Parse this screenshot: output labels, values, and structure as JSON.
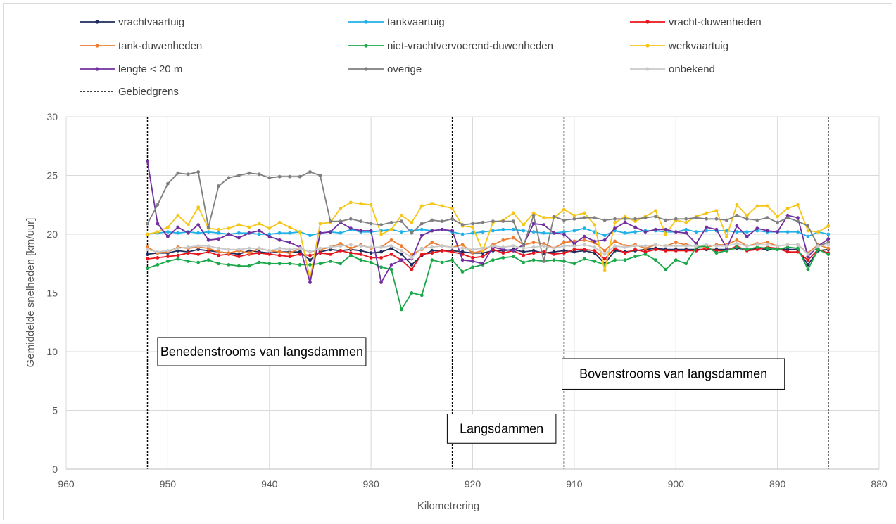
{
  "chart_data": {
    "type": "line",
    "xlabel": "Kilometrering",
    "ylabel": "Gemiddelde snelheden [km/uur]",
    "xlim": [
      960,
      880
    ],
    "ylim": [
      0,
      30
    ],
    "x_reversed": true,
    "x_ticks": [
      960,
      950,
      940,
      930,
      920,
      910,
      900,
      890,
      880
    ],
    "y_ticks": [
      0,
      5,
      10,
      15,
      20,
      25,
      30
    ],
    "grid": true,
    "legend_position": "top",
    "boundaries": {
      "name": "Gebiedgrens",
      "color": "#000000",
      "x": [
        952,
        922,
        911,
        885
      ]
    },
    "region_labels": [
      {
        "text": "Benedenstrooms van langsdammen",
        "x_from": 951,
        "x_to": 930.5,
        "y_from": 8.8,
        "y_to": 11.2
      },
      {
        "text": "Langsdammen",
        "x_from": 922.5,
        "x_to": 911.8,
        "y_from": 2.2,
        "y_to": 4.7
      },
      {
        "text": "Bovenstrooms van langsdammen",
        "x_from": 911.2,
        "x_to": 889.3,
        "y_from": 6.8,
        "y_to": 9.4
      }
    ],
    "x": [
      952,
      951,
      950,
      949,
      948,
      947,
      946,
      945,
      944,
      943,
      942,
      941,
      940,
      939,
      938,
      937,
      936,
      935,
      934,
      933,
      932,
      931,
      930,
      929,
      928,
      927,
      926,
      925,
      924,
      923,
      922,
      921,
      920,
      919,
      918,
      917,
      916,
      915,
      914,
      913,
      912,
      911,
      910,
      909,
      908,
      907,
      906,
      905,
      904,
      903,
      902,
      901,
      900,
      899,
      898,
      897,
      896,
      895,
      894,
      893,
      892,
      891,
      890,
      889,
      888,
      887,
      886,
      885
    ],
    "series": [
      {
        "name": "vrachtvaartuig",
        "color": "#1f2d5e",
        "values": [
          18.3,
          18.4,
          18.4,
          18.6,
          18.5,
          18.7,
          18.6,
          18.5,
          18.4,
          18.3,
          18.6,
          18.5,
          18.4,
          18.5,
          18.5,
          18.5,
          17.8,
          18.5,
          18.7,
          18.6,
          18.7,
          18.6,
          18.4,
          18.5,
          18.8,
          18.3,
          17.4,
          18.2,
          18.6,
          18.6,
          18.6,
          18.5,
          18.4,
          18.4,
          18.6,
          18.6,
          18.7,
          18.5,
          18.6,
          18.4,
          18.5,
          18.6,
          18.5,
          18.6,
          18.4,
          17.5,
          18.6,
          18.5,
          18.6,
          18.7,
          18.8,
          18.7,
          18.7,
          18.7,
          18.7,
          18.7,
          18.7,
          18.7,
          18.8,
          18.7,
          18.8,
          18.7,
          18.8,
          18.7,
          18.7,
          17.4,
          18.6,
          18.7
        ]
      },
      {
        "name": "tankvaartuig",
        "color": "#1fb1e8",
        "values": [
          20.0,
          20.1,
          20.2,
          20.1,
          20.2,
          20.1,
          20.2,
          20.1,
          20.0,
          20.1,
          20.1,
          20.0,
          20.0,
          20.1,
          20.1,
          20.2,
          19.9,
          20.1,
          20.2,
          20.1,
          20.4,
          20.2,
          20.2,
          20.3,
          20.4,
          20.2,
          20.3,
          20.4,
          20.3,
          20.4,
          20.2,
          20.0,
          20.1,
          20.2,
          20.3,
          20.4,
          20.4,
          20.3,
          20.2,
          20.1,
          20.1,
          20.2,
          20.3,
          20.5,
          20.2,
          19.9,
          20.3,
          20.1,
          20.2,
          20.3,
          20.3,
          20.2,
          20.2,
          20.4,
          20.2,
          20.3,
          20.3,
          20.3,
          20.2,
          20.2,
          20.3,
          20.2,
          20.2,
          20.2,
          20.2,
          19.8,
          20.2,
          20.0
        ]
      },
      {
        "name": "vracht-duwenheden",
        "color": "#e8141c",
        "values": [
          17.9,
          18.0,
          18.1,
          18.2,
          18.4,
          18.3,
          18.5,
          18.2,
          18.3,
          18.1,
          18.3,
          18.4,
          18.3,
          18.2,
          18.1,
          18.3,
          18.2,
          18.4,
          18.3,
          18.6,
          18.4,
          18.3,
          18.0,
          18.0,
          18.3,
          17.8,
          17.0,
          18.3,
          18.4,
          18.6,
          18.5,
          18.3,
          18.0,
          18.1,
          18.7,
          18.4,
          18.6,
          18.2,
          18.4,
          18.5,
          18.3,
          18.4,
          18.7,
          18.7,
          18.6,
          17.9,
          18.8,
          18.4,
          18.7,
          18.5,
          18.7,
          18.6,
          18.6,
          18.6,
          18.6,
          18.8,
          18.6,
          18.6,
          19.0,
          18.6,
          18.7,
          18.9,
          18.8,
          18.5,
          18.5,
          17.8,
          18.7,
          18.4
        ]
      },
      {
        "name": "tank-duwenheden",
        "color": "#ed7d31",
        "values": [
          18.9,
          18.4,
          18.5,
          18.9,
          18.8,
          18.9,
          18.8,
          18.5,
          18.4,
          18.6,
          18.4,
          18.8,
          18.6,
          18.5,
          18.4,
          18.8,
          18.5,
          18.7,
          18.9,
          19.2,
          18.8,
          19.1,
          18.8,
          18.9,
          19.5,
          19.0,
          18.3,
          18.7,
          19.3,
          19.0,
          18.9,
          19.1,
          18.4,
          18.6,
          19.1,
          19.5,
          19.7,
          19.1,
          19.3,
          19.2,
          18.8,
          19.3,
          19.4,
          19.5,
          19.3,
          18.6,
          19.4,
          19.0,
          19.1,
          18.8,
          19.1,
          19.0,
          19.3,
          19.1,
          19.0,
          18.9,
          19.1,
          19.1,
          19.5,
          19.0,
          19.2,
          19.3,
          19.0,
          19.1,
          19.1,
          18.4,
          19.1,
          18.8
        ]
      },
      {
        "name": "niet-vrachtvervoerend-duwenheden",
        "color": "#1aa84a",
        "values": [
          17.1,
          17.4,
          17.7,
          17.9,
          17.7,
          17.6,
          17.8,
          17.5,
          17.4,
          17.3,
          17.3,
          17.6,
          17.5,
          17.5,
          17.5,
          17.4,
          17.4,
          17.5,
          17.7,
          17.5,
          18.2,
          17.8,
          17.6,
          17.2,
          17.0,
          13.6,
          15.0,
          14.8,
          17.8,
          17.6,
          17.8,
          16.8,
          17.2,
          17.4,
          17.8,
          18.0,
          18.1,
          17.6,
          17.8,
          17.7,
          17.8,
          17.7,
          17.5,
          17.9,
          17.7,
          17.4,
          17.8,
          17.8,
          18.1,
          18.3,
          17.8,
          17.0,
          17.8,
          17.5,
          18.9,
          19.0,
          18.4,
          18.6,
          18.9,
          18.7,
          18.9,
          18.8,
          18.7,
          18.9,
          18.8,
          17.0,
          18.7,
          18.3
        ]
      },
      {
        "name": "werkvaartuig",
        "color": "#f5c518",
        "values": [
          20.0,
          20.2,
          20.6,
          21.6,
          20.8,
          22.3,
          20.5,
          20.4,
          20.5,
          20.8,
          20.6,
          20.9,
          20.5,
          21.0,
          20.6,
          20.2,
          16.2,
          20.9,
          21.0,
          22.2,
          22.7,
          22.6,
          22.5,
          20.0,
          20.4,
          21.6,
          21.0,
          22.4,
          22.6,
          22.4,
          22.2,
          20.7,
          20.6,
          18.6,
          21.0,
          21.2,
          21.8,
          20.8,
          21.8,
          21.4,
          21.4,
          22.1,
          21.6,
          21.8,
          20.8,
          16.9,
          21.0,
          21.5,
          21.1,
          21.5,
          22.0,
          20.0,
          21.2,
          21.0,
          21.5,
          21.8,
          22.0,
          19.8,
          22.5,
          21.6,
          22.4,
          22.4,
          21.5,
          22.2,
          22.5,
          20.3,
          20.2,
          20.7
        ]
      },
      {
        "name": "lengte < 20 m",
        "color": "#7030a0",
        "values": [
          26.2,
          20.9,
          19.8,
          20.6,
          20.1,
          20.8,
          19.5,
          19.6,
          20.0,
          19.7,
          20.1,
          20.3,
          19.8,
          19.5,
          19.3,
          18.9,
          15.9,
          20.1,
          20.2,
          21.0,
          20.5,
          20.3,
          20.3,
          15.9,
          17.4,
          17.8,
          17.9,
          19.9,
          20.3,
          20.4,
          20.3,
          17.8,
          17.7,
          17.5,
          18.9,
          18.7,
          18.6,
          19.1,
          20.9,
          20.8,
          20.1,
          20.0,
          19.2,
          19.8,
          19.4,
          19.5,
          20.5,
          21.0,
          20.6,
          20.2,
          20.4,
          20.4,
          20.2,
          20.1,
          19.2,
          20.6,
          20.4,
          18.8,
          20.7,
          19.8,
          20.5,
          20.3,
          20.2,
          21.6,
          21.4,
          18.1,
          19.0,
          19.6
        ]
      },
      {
        "name": "overige",
        "color": "#7f7f7f",
        "values": [
          20.9,
          22.5,
          24.3,
          25.2,
          25.1,
          25.3,
          20.6,
          24.1,
          24.8,
          25.0,
          25.2,
          25.1,
          24.8,
          24.9,
          24.9,
          24.9,
          25.3,
          25.0,
          21.1,
          21.1,
          21.3,
          21.1,
          20.9,
          20.8,
          21.0,
          21.1,
          20.1,
          20.9,
          21.2,
          21.1,
          21.3,
          20.8,
          20.9,
          21.0,
          21.1,
          21.1,
          21.1,
          19.0,
          21.6,
          17.7,
          21.5,
          21.2,
          21.3,
          21.4,
          21.4,
          21.2,
          21.3,
          21.3,
          21.3,
          21.4,
          21.5,
          21.2,
          21.3,
          21.3,
          21.4,
          21.3,
          21.3,
          21.2,
          21.6,
          21.3,
          21.2,
          21.4,
          21.0,
          21.4,
          21.1,
          20.7,
          19.0,
          19.3
        ]
      },
      {
        "name": "onbekend",
        "color": "#c9c9c9",
        "values": [
          18.7,
          18.5,
          18.6,
          18.8,
          18.9,
          19.0,
          19.0,
          18.8,
          18.7,
          18.7,
          18.8,
          18.8,
          18.6,
          18.8,
          18.7,
          18.8,
          18.5,
          18.8,
          18.9,
          19.0,
          19.1,
          19.0,
          18.9,
          18.9,
          19.0,
          18.6,
          18.0,
          18.8,
          18.9,
          19.0,
          18.9,
          18.8,
          18.7,
          18.8,
          19.0,
          18.9,
          19.0,
          18.8,
          18.9,
          19.0,
          18.8,
          19.0,
          19.0,
          19.1,
          18.9,
          18.3,
          19.0,
          18.9,
          19.0,
          19.0,
          19.1,
          19.0,
          19.0,
          19.0,
          19.0,
          19.1,
          19.0,
          19.0,
          19.2,
          19.0,
          19.1,
          19.1,
          19.0,
          19.1,
          19.1,
          18.3,
          19.0,
          19.1
        ]
      }
    ]
  }
}
